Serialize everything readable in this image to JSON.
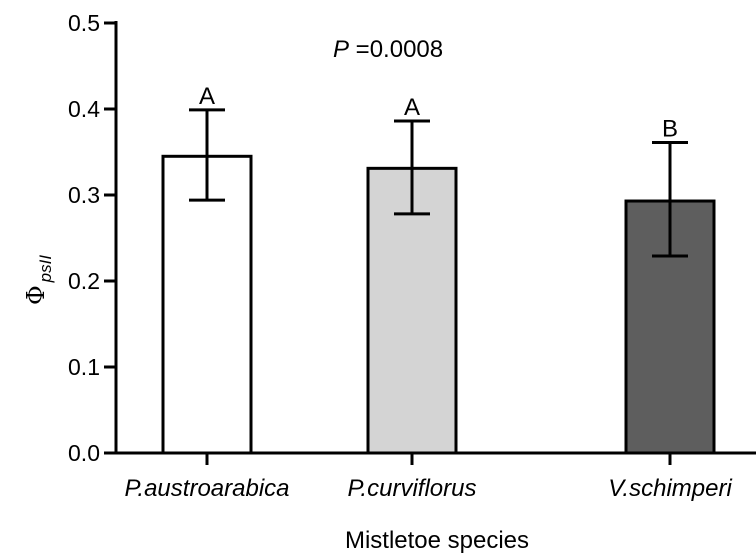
{
  "chart_data": {
    "type": "bar",
    "categories": [
      "P.austroarabica",
      "P.curviflorus",
      "V.schimperi"
    ],
    "values": [
      0.345,
      0.331,
      0.293
    ],
    "error_high": [
      0.399,
      0.386,
      0.361
    ],
    "error_low": [
      0.294,
      0.278,
      0.229
    ],
    "bar_colors": [
      "#ffffff",
      "#d4d4d4",
      "#5e5e5e"
    ],
    "significance_letters": [
      "A",
      "A",
      "B"
    ],
    "annotation": {
      "italic": "P",
      "rest": " =0.0008"
    },
    "ylabel": {
      "main": "Φ",
      "sub": "psII"
    },
    "xlabel": "Mistletoe species",
    "ylim": [
      0,
      0.5
    ],
    "yticks": [
      "0.0",
      "0.1",
      "0.2",
      "0.3",
      "0.4",
      "0.5"
    ],
    "grid": false
  }
}
